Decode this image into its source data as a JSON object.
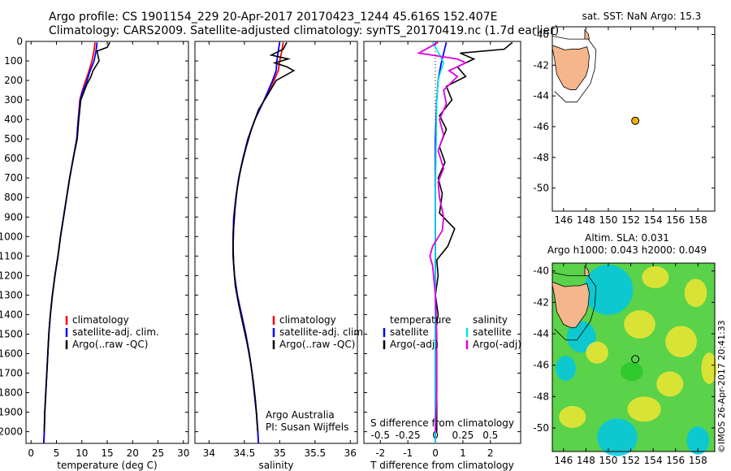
{
  "header": {
    "title_line1": "Argo profile: CS 1901154_229 20-Apr-2017 20170423_1244 45.616S 152.407E",
    "title_line2": "Climatology: CARS2009. Satellite-adjusted climatology: synTS_20170419.nc (1.7d earlier)"
  },
  "depth_axis": {
    "ticks": [
      0,
      100,
      200,
      300,
      400,
      500,
      600,
      700,
      800,
      900,
      1000,
      1100,
      1200,
      1300,
      1400,
      1500,
      1600,
      1700,
      1800,
      1900,
      2000
    ],
    "ylim": [
      0,
      2060
    ],
    "inverted": true
  },
  "chart_data": [
    {
      "type": "line",
      "id": "temperature",
      "xlabel": "temperature (deg C)",
      "xlim": [
        -1,
        31
      ],
      "xticks": [
        0,
        5,
        10,
        15,
        20,
        25,
        30
      ],
      "grid": false,
      "legend_position": "lower-center",
      "legend": [
        "climatology",
        "satellite-adj. clim.",
        "Argo(..raw -QC)"
      ],
      "series": [
        {
          "name": "climatology",
          "color": "#ff0000",
          "points": [
            [
              12.6,
              5
            ],
            [
              12.4,
              50
            ],
            [
              12.0,
              100
            ],
            [
              11.3,
              160
            ],
            [
              10.5,
              220
            ],
            [
              10.0,
              260
            ],
            [
              9.6,
              300
            ],
            [
              9.3,
              400
            ],
            [
              9.0,
              500
            ],
            [
              8.3,
              600
            ],
            [
              7.6,
              700
            ],
            [
              7.0,
              800
            ],
            [
              6.4,
              900
            ],
            [
              5.8,
              1000
            ],
            [
              5.3,
              1100
            ],
            [
              4.7,
              1200
            ],
            [
              4.2,
              1300
            ],
            [
              3.8,
              1400
            ],
            [
              3.5,
              1500
            ],
            [
              3.3,
              1600
            ],
            [
              3.1,
              1700
            ],
            [
              2.9,
              1800
            ],
            [
              2.7,
              1900
            ],
            [
              2.6,
              2000
            ],
            [
              2.5,
              2060
            ]
          ]
        },
        {
          "name": "satellite-adj. clim.",
          "color": "#0000ff",
          "points": [
            [
              13.0,
              5
            ],
            [
              12.8,
              50
            ],
            [
              12.4,
              100
            ],
            [
              11.5,
              160
            ],
            [
              10.8,
              220
            ],
            [
              10.1,
              260
            ],
            [
              9.7,
              300
            ],
            [
              9.3,
              400
            ],
            [
              9.0,
              500
            ],
            [
              8.3,
              600
            ],
            [
              7.6,
              700
            ],
            [
              7.0,
              800
            ],
            [
              6.4,
              900
            ],
            [
              5.8,
              1000
            ],
            [
              5.3,
              1100
            ],
            [
              4.7,
              1200
            ],
            [
              4.2,
              1300
            ],
            [
              3.8,
              1400
            ],
            [
              3.5,
              1500
            ],
            [
              3.3,
              1600
            ],
            [
              3.1,
              1700
            ],
            [
              2.9,
              1800
            ],
            [
              2.7,
              1900
            ],
            [
              2.6,
              2000
            ],
            [
              2.5,
              2060
            ]
          ]
        },
        {
          "name": "Argo(..raw -QC)",
          "color": "#000000",
          "points": [
            [
              15.5,
              5
            ],
            [
              15.0,
              30
            ],
            [
              13.0,
              50
            ],
            [
              13.4,
              100
            ],
            [
              12.2,
              150
            ],
            [
              11.8,
              180
            ],
            [
              11.0,
              220
            ],
            [
              10.4,
              260
            ],
            [
              9.8,
              300
            ],
            [
              9.4,
              400
            ],
            [
              9.1,
              500
            ],
            [
              8.3,
              600
            ],
            [
              7.6,
              700
            ],
            [
              7.0,
              800
            ],
            [
              6.4,
              900
            ],
            [
              5.8,
              1000
            ],
            [
              5.3,
              1100
            ],
            [
              4.7,
              1200
            ],
            [
              4.2,
              1300
            ],
            [
              3.8,
              1400
            ],
            [
              3.5,
              1500
            ],
            [
              3.3,
              1600
            ],
            [
              3.1,
              1700
            ],
            [
              2.9,
              1800
            ],
            [
              2.7,
              1900
            ],
            [
              2.6,
              2000
            ]
          ]
        }
      ]
    },
    {
      "type": "line",
      "id": "salinity",
      "xlabel": "salinity",
      "xlim": [
        33.8,
        36.1
      ],
      "xticks": [
        34,
        34.5,
        35,
        35.5,
        36
      ],
      "grid": false,
      "legend_position": "lower-right",
      "legend": [
        "climatology",
        "satellite-adj. clim.",
        "Argo(..raw -QC)"
      ],
      "annotation": [
        "Argo Australia",
        "PI: Susan Wijffels"
      ],
      "series": [
        {
          "name": "climatology",
          "color": "#ff0000",
          "points": [
            [
              35.05,
              5
            ],
            [
              35.03,
              50
            ],
            [
              35.0,
              100
            ],
            [
              34.98,
              150
            ],
            [
              34.92,
              200
            ],
            [
              34.85,
              250
            ],
            [
              34.78,
              300
            ],
            [
              34.65,
              400
            ],
            [
              34.55,
              500
            ],
            [
              34.48,
              600
            ],
            [
              34.42,
              700
            ],
            [
              34.38,
              800
            ],
            [
              34.35,
              900
            ],
            [
              34.34,
              1000
            ],
            [
              34.34,
              1100
            ],
            [
              34.36,
              1200
            ],
            [
              34.4,
              1300
            ],
            [
              34.46,
              1400
            ],
            [
              34.52,
              1500
            ],
            [
              34.57,
              1600
            ],
            [
              34.61,
              1700
            ],
            [
              34.64,
              1800
            ],
            [
              34.67,
              1900
            ],
            [
              34.69,
              2000
            ],
            [
              34.7,
              2060
            ]
          ]
        },
        {
          "name": "satellite-adj. clim.",
          "color": "#0000ff",
          "points": [
            [
              35.0,
              5
            ],
            [
              34.98,
              50
            ],
            [
              34.96,
              100
            ],
            [
              34.95,
              150
            ],
            [
              34.9,
              200
            ],
            [
              34.84,
              250
            ],
            [
              34.78,
              300
            ],
            [
              34.65,
              400
            ],
            [
              34.55,
              500
            ],
            [
              34.48,
              600
            ],
            [
              34.42,
              700
            ],
            [
              34.38,
              800
            ],
            [
              34.35,
              900
            ],
            [
              34.34,
              1000
            ],
            [
              34.34,
              1100
            ],
            [
              34.36,
              1200
            ],
            [
              34.4,
              1300
            ],
            [
              34.46,
              1400
            ],
            [
              34.52,
              1500
            ],
            [
              34.57,
              1600
            ],
            [
              34.61,
              1700
            ],
            [
              34.64,
              1800
            ],
            [
              34.67,
              1900
            ],
            [
              34.69,
              2000
            ],
            [
              34.7,
              2060
            ]
          ]
        },
        {
          "name": "Argo(..raw -QC)",
          "color": "#000000",
          "points": [
            [
              35.1,
              5
            ],
            [
              35.05,
              40
            ],
            [
              34.88,
              70
            ],
            [
              35.12,
              90
            ],
            [
              34.93,
              110
            ],
            [
              35.1,
              130
            ],
            [
              35.2,
              150
            ],
            [
              34.95,
              200
            ],
            [
              34.82,
              280
            ],
            [
              34.7,
              350
            ],
            [
              34.6,
              450
            ],
            [
              34.52,
              550
            ],
            [
              34.45,
              650
            ],
            [
              34.4,
              750
            ],
            [
              34.37,
              850
            ],
            [
              34.35,
              950
            ],
            [
              34.34,
              1050
            ],
            [
              34.35,
              1150
            ],
            [
              34.37,
              1250
            ],
            [
              34.42,
              1350
            ],
            [
              34.48,
              1450
            ],
            [
              34.54,
              1550
            ],
            [
              34.59,
              1650
            ],
            [
              34.63,
              1750
            ],
            [
              34.66,
              1850
            ],
            [
              34.68,
              1950
            ],
            [
              34.69,
              2000
            ]
          ]
        }
      ]
    },
    {
      "type": "line",
      "id": "difference",
      "xlabel": "T difference from climatology",
      "xlabel_top": "S difference from climatology",
      "xlim": [
        -2.6,
        3.1
      ],
      "xticks": [
        -2,
        -1,
        0,
        1,
        2
      ],
      "xticks_top": {
        "values": [
          -0.5,
          -0.25,
          0,
          0.25,
          0.5
        ],
        "labels": [
          "-0.5",
          "-0.25",
          "0",
          "0.25",
          "0.5"
        ]
      },
      "grid": false,
      "legend_position": "lower-center",
      "legend_groups": [
        {
          "heading": "temperature",
          "items": [
            "satellite",
            "Argo(-adj)"
          ]
        },
        {
          "heading": "salinity",
          "items": [
            "satellite",
            "Argo(-adj)"
          ]
        }
      ],
      "series": [
        {
          "name": "temperature satellite",
          "color": "#0000ff",
          "points": [
            [
              0.4,
              5
            ],
            [
              0.3,
              60
            ],
            [
              0.2,
              120
            ],
            [
              0.1,
              200
            ],
            [
              0.05,
              300
            ],
            [
              0,
              500
            ],
            [
              0,
              1000
            ],
            [
              0,
              1500
            ],
            [
              0,
              2060
            ]
          ]
        },
        {
          "name": "temperature Argo(-adj)",
          "color": "#000000",
          "points": [
            [
              2.8,
              5
            ],
            [
              2.5,
              40
            ],
            [
              0.9,
              60
            ],
            [
              1.4,
              90
            ],
            [
              0.8,
              130
            ],
            [
              1.1,
              180
            ],
            [
              0.4,
              230
            ],
            [
              0.6,
              300
            ],
            [
              0.15,
              380
            ],
            [
              0.4,
              450
            ],
            [
              0.15,
              540
            ],
            [
              0.35,
              620
            ],
            [
              0.1,
              700
            ],
            [
              0.25,
              780
            ],
            [
              0.15,
              880
            ],
            [
              0.7,
              960
            ],
            [
              0.45,
              1050
            ],
            [
              0.05,
              1120
            ],
            [
              0.1,
              1200
            ],
            [
              0,
              1300
            ],
            [
              0.1,
              1400
            ],
            [
              0,
              1500
            ],
            [
              0.05,
              1700
            ],
            [
              0.05,
              1900
            ],
            [
              0.05,
              2000
            ]
          ]
        },
        {
          "name": "salinity satellite",
          "color": "#00e5e5",
          "points": [
            [
              -0.1,
              5
            ],
            [
              0.2,
              80
            ],
            [
              0.3,
              110
            ],
            [
              0.2,
              150
            ],
            [
              0.1,
              200
            ],
            [
              0.05,
              300
            ],
            [
              0.03,
              500
            ],
            [
              0,
              800
            ],
            [
              0,
              1200
            ],
            [
              0,
              1600
            ],
            [
              0,
              2060
            ]
          ]
        },
        {
          "name": "salinity Argo(-adj)",
          "color": "#e000e0",
          "points": [
            [
              0.1,
              5
            ],
            [
              -0.6,
              60
            ],
            [
              0.8,
              90
            ],
            [
              1.1,
              110
            ],
            [
              0.5,
              150
            ],
            [
              0.8,
              180
            ],
            [
              0.3,
              250
            ],
            [
              0.4,
              320
            ],
            [
              0.15,
              400
            ],
            [
              0.3,
              480
            ],
            [
              0.1,
              560
            ],
            [
              0.3,
              650
            ],
            [
              0.1,
              720
            ],
            [
              0.15,
              800
            ],
            [
              0.3,
              900
            ],
            [
              0.25,
              970
            ],
            [
              -0.1,
              1050
            ],
            [
              -0.2,
              1100
            ],
            [
              -0.1,
              1150
            ],
            [
              0,
              1300
            ],
            [
              0.05,
              1500
            ],
            [
              0.05,
              1800
            ],
            [
              0,
              2000
            ]
          ]
        }
      ]
    },
    {
      "type": "scatter",
      "id": "map_sst",
      "title": "sat. SST: NaN Argo: 15.3",
      "xlim": [
        145,
        159.5
      ],
      "ylim": [
        -51.5,
        -39.5
      ],
      "xticks": [
        146,
        148,
        150,
        152,
        154,
        156,
        158
      ],
      "yticks": [
        -40,
        -42,
        -44,
        -46,
        -48,
        -50
      ],
      "points": [
        {
          "lon": 152.407,
          "lat": -45.616,
          "fill": "#f0b000"
        }
      ]
    },
    {
      "type": "heatmap",
      "id": "map_sla",
      "title_line1": "Altim. SLA: 0.031",
      "title_line2": "Argo h1000: 0.043 h2000: 0.049",
      "xlim": [
        145,
        159.5
      ],
      "ylim": [
        -51.5,
        -39.5
      ],
      "xticks": [
        146,
        148,
        150,
        152,
        154,
        156,
        158
      ],
      "yticks": [
        -40,
        -42,
        -44,
        -46,
        -48,
        -50
      ],
      "points": [
        {
          "lon": 152.407,
          "lat": -45.616,
          "fill": "none"
        }
      ],
      "field_colors": {
        "low": "#00c8e6",
        "mid": "#28c828",
        "high": "#f0e632"
      }
    }
  ],
  "credit": "©IMOS 26-Apr-2017 20:41:33",
  "colors": {
    "land": "#f5b68c",
    "frame": "#000000"
  }
}
